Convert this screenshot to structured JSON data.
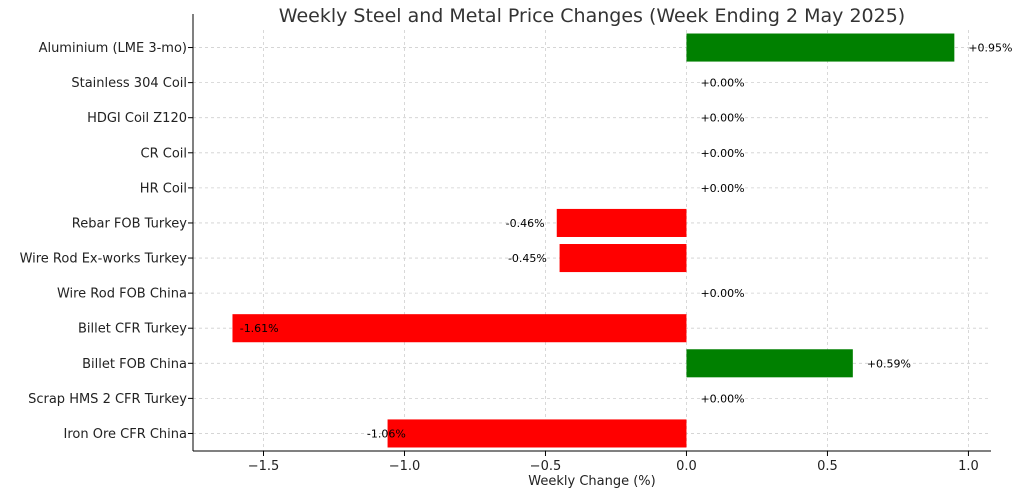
{
  "chart_data": {
    "type": "bar",
    "orientation": "horizontal",
    "title": "Weekly Steel and Metal Price Changes (Week Ending 2 May 2025)",
    "xlabel": "Weekly Change (%)",
    "ylabel": "",
    "xlim": [
      -1.75,
      1.08
    ],
    "xticks": [
      -1.5,
      -1.0,
      -0.5,
      0.0,
      0.5,
      1.0
    ],
    "xtick_labels": [
      "−1.5",
      "−1.0",
      "−0.5",
      "0.0",
      "0.5",
      "1.0"
    ],
    "grid": true,
    "categories": [
      "Aluminium (LME 3-mo)",
      "Stainless 304 Coil",
      "HDGI Coil Z120",
      "CR Coil",
      "HR Coil",
      "Rebar FOB Turkey",
      "Wire Rod Ex-works Turkey",
      "Wire Rod FOB China",
      "Billet CFR Turkey",
      "Billet FOB China",
      "Scrap HMS 2 CFR Turkey",
      "Iron Ore CFR China"
    ],
    "values": [
      0.95,
      0.0,
      0.0,
      0.0,
      0.0,
      -0.46,
      -0.45,
      0.0,
      -1.61,
      0.59,
      0.0,
      -1.06
    ],
    "value_labels": [
      "+0.95%",
      "+0.00%",
      "+0.00%",
      "+0.00%",
      "+0.00%",
      "-0.46%",
      "-0.45%",
      "+0.00%",
      "-1.61%",
      "+0.59%",
      "+0.00%",
      "-1.06%"
    ],
    "colors": {
      "positive": "#008000",
      "negative": "#ff0000"
    }
  }
}
